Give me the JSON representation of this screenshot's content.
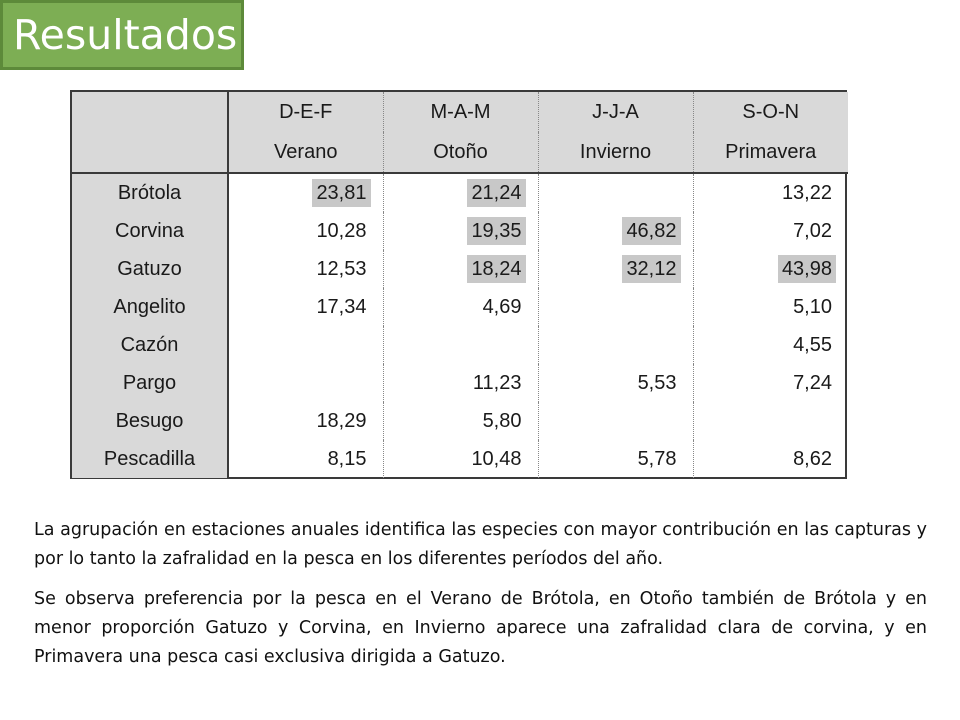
{
  "title": "Resultados",
  "table": {
    "header_top": [
      "",
      "D-E-F",
      "M-A-M",
      "J-J-A",
      "S-O-N"
    ],
    "header_bottom": [
      "",
      "Verano",
      "Otoño",
      "Invierno",
      "Primavera"
    ],
    "rows": [
      {
        "label": "Brótola",
        "cells": [
          {
            "v": "23,81",
            "hl": true
          },
          {
            "v": "21,24",
            "hl": true
          },
          {
            "v": "",
            "hl": false
          },
          {
            "v": "13,22",
            "hl": false
          }
        ]
      },
      {
        "label": "Corvina",
        "cells": [
          {
            "v": "10,28",
            "hl": false
          },
          {
            "v": "19,35",
            "hl": true
          },
          {
            "v": "46,82",
            "hl": true
          },
          {
            "v": "7,02",
            "hl": false
          }
        ]
      },
      {
        "label": "Gatuzo",
        "cells": [
          {
            "v": "12,53",
            "hl": false
          },
          {
            "v": "18,24",
            "hl": true
          },
          {
            "v": "32,12",
            "hl": true
          },
          {
            "v": "43,98",
            "hl": true
          }
        ]
      },
      {
        "label": "Angelito",
        "cells": [
          {
            "v": "17,34",
            "hl": false
          },
          {
            "v": "4,69",
            "hl": false
          },
          {
            "v": "",
            "hl": false
          },
          {
            "v": "5,10",
            "hl": false
          }
        ]
      },
      {
        "label": "Cazón",
        "cells": [
          {
            "v": "",
            "hl": false
          },
          {
            "v": "",
            "hl": false
          },
          {
            "v": "",
            "hl": false
          },
          {
            "v": "4,55",
            "hl": false
          }
        ]
      },
      {
        "label": "Pargo",
        "cells": [
          {
            "v": "",
            "hl": false
          },
          {
            "v": "11,23",
            "hl": false
          },
          {
            "v": "5,53",
            "hl": false
          },
          {
            "v": "7,24",
            "hl": false
          }
        ]
      },
      {
        "label": "Besugo",
        "cells": [
          {
            "v": "18,29",
            "hl": false
          },
          {
            "v": "5,80",
            "hl": false
          },
          {
            "v": "",
            "hl": false
          },
          {
            "v": "",
            "hl": false
          }
        ]
      },
      {
        "label": "Pescadilla",
        "cells": [
          {
            "v": "8,15",
            "hl": false
          },
          {
            "v": "10,48",
            "hl": false
          },
          {
            "v": "5,78",
            "hl": false
          },
          {
            "v": "8,62",
            "hl": false
          }
        ]
      }
    ]
  },
  "paragraphs": [
    "La agrupación en estaciones anuales identifica las especies con mayor contribución en las capturas y por lo tanto la zafralidad en la pesca en los diferentes períodos del año.",
    "Se observa preferencia por la pesca en el Verano de Brótola, en Otoño también de Brótola y en menor proporción Gatuzo y Corvina, en Invierno aparece una zafralidad clara de corvina, y en Primavera una pesca casi exclusiva dirigida a Gatuzo."
  ],
  "colors": {
    "title_bg": "#7dae54",
    "header_bg": "#d9d9d9",
    "highlight": "#c8c8c8"
  }
}
